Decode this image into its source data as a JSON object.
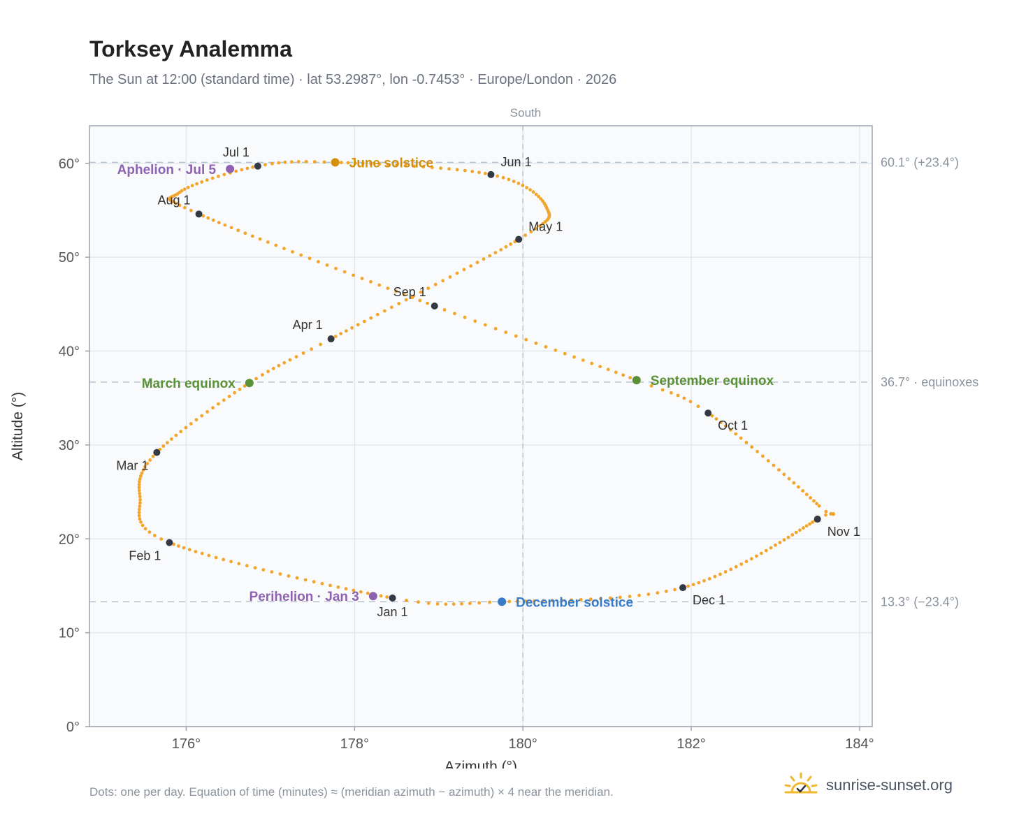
{
  "header": {
    "title": "Torksey Analemma",
    "subtitle": "The Sun at 12:00 (standard time) · lat 53.2987°, lon -0.7453° · Europe/London · 2026"
  },
  "footer": {
    "note": "Dots: one per day. Equation of time (minutes) ≈ (meridian azimuth − azimuth) × 4 near the meridian.",
    "brand": "sunrise-sunset.org",
    "brand_icon": "sun-check-icon"
  },
  "colors": {
    "path": "#f2a52a",
    "month": "#333a45",
    "solstice_june": "#d4900a",
    "solstice_december": "#3a7bc8",
    "equinox": "#5a9137",
    "apsis": "#8e62b0",
    "plot_bg": "#f8fafc",
    "grid": "#e3e8ee",
    "ref_line": "#b8c2cc",
    "axis": "#9aa3ad"
  },
  "chart_data": {
    "type": "scatter",
    "title": "Torksey Analemma",
    "xlabel": "Azimuth (°)",
    "ylabel": "Altitude (°)",
    "xlim": [
      174.85,
      184.15
    ],
    "ylim": [
      0,
      64
    ],
    "xticks": [
      176,
      178,
      180,
      182,
      184
    ],
    "yticks": [
      0,
      10,
      20,
      30,
      40,
      50,
      60
    ],
    "tick_suffix": "°",
    "grid": true,
    "meridian": {
      "azimuth": 180,
      "label": "South"
    },
    "reference_lines": [
      {
        "altitude": 60.1,
        "label": "60.1° (+23.4°)"
      },
      {
        "altitude": 36.7,
        "label": "36.7° · equinoxes"
      },
      {
        "altitude": 13.3,
        "label": "13.3° (−23.4°)"
      }
    ],
    "curve_nodes": [
      {
        "day": 0,
        "az": 178.45,
        "alt": 13.7
      },
      {
        "day": 31,
        "az": 175.8,
        "alt": 19.6
      },
      {
        "day": 45,
        "az": 175.45,
        "alt": 24.5
      },
      {
        "day": 59,
        "az": 175.65,
        "alt": 29.2
      },
      {
        "day": 78,
        "az": 176.75,
        "alt": 36.6
      },
      {
        "day": 90,
        "az": 177.72,
        "alt": 41.3
      },
      {
        "day": 120,
        "az": 179.95,
        "alt": 51.9
      },
      {
        "day": 135,
        "az": 180.28,
        "alt": 55.3
      },
      {
        "day": 151,
        "az": 179.62,
        "alt": 58.8
      },
      {
        "day": 171,
        "az": 177.77,
        "alt": 60.1
      },
      {
        "day": 181,
        "az": 176.85,
        "alt": 59.7
      },
      {
        "day": 197,
        "az": 175.92,
        "alt": 56.9
      },
      {
        "day": 212,
        "az": 176.15,
        "alt": 54.6
      },
      {
        "day": 243,
        "az": 178.95,
        "alt": 44.8
      },
      {
        "day": 265,
        "az": 181.35,
        "alt": 36.9
      },
      {
        "day": 273,
        "az": 182.2,
        "alt": 33.4
      },
      {
        "day": 297,
        "az": 183.52,
        "alt": 23.5
      },
      {
        "day": 304,
        "az": 183.5,
        "alt": 22.1
      },
      {
        "day": 334,
        "az": 181.9,
        "alt": 14.8
      },
      {
        "day": 354,
        "az": 179.75,
        "alt": 13.3
      },
      {
        "day": 365,
        "az": 178.45,
        "alt": 13.7
      }
    ],
    "months": [
      {
        "label": "Jan 1",
        "az": 178.45,
        "alt": 13.7,
        "anchor": "middle",
        "pos": "below"
      },
      {
        "label": "Feb 1",
        "az": 175.8,
        "alt": 19.6,
        "anchor": "end",
        "pos": "below-left"
      },
      {
        "label": "Mar 1",
        "az": 175.65,
        "alt": 29.2,
        "anchor": "end",
        "pos": "below-left"
      },
      {
        "label": "Apr 1",
        "az": 177.72,
        "alt": 41.3,
        "anchor": "end",
        "pos": "above-left"
      },
      {
        "label": "May 1",
        "az": 179.95,
        "alt": 51.9,
        "anchor": "start",
        "pos": "above-right"
      },
      {
        "label": "Jun 1",
        "az": 179.62,
        "alt": 58.8,
        "anchor": "start",
        "pos": "above-right"
      },
      {
        "label": "Jul 1",
        "az": 176.85,
        "alt": 59.7,
        "anchor": "end",
        "pos": "above-left"
      },
      {
        "label": "Aug 1",
        "az": 176.15,
        "alt": 54.6,
        "anchor": "end",
        "pos": "above-left"
      },
      {
        "label": "Sep 1",
        "az": 178.95,
        "alt": 44.8,
        "anchor": "end",
        "pos": "above-left"
      },
      {
        "label": "Oct 1",
        "az": 182.2,
        "alt": 33.4,
        "anchor": "start",
        "pos": "below-right"
      },
      {
        "label": "Nov 1",
        "az": 183.5,
        "alt": 22.1,
        "anchor": "start",
        "pos": "below-right"
      },
      {
        "label": "Dec 1",
        "az": 181.9,
        "alt": 14.8,
        "anchor": "start",
        "pos": "below-right"
      }
    ],
    "events": [
      {
        "label": "June solstice",
        "az": 177.77,
        "alt": 60.1,
        "color": "#d4900a",
        "side": "right"
      },
      {
        "label": "December solstice",
        "az": 179.75,
        "alt": 13.3,
        "color": "#3a7bc8",
        "side": "right"
      },
      {
        "label": "March equinox",
        "az": 176.75,
        "alt": 36.6,
        "color": "#5a9137",
        "side": "left"
      },
      {
        "label": "September equinox",
        "az": 181.35,
        "alt": 36.9,
        "color": "#5a9137",
        "side": "right"
      },
      {
        "label": "Aphelion · Jul 5",
        "az": 176.52,
        "alt": 59.4,
        "color": "#8e62b0",
        "side": "left"
      },
      {
        "label": "Perihelion · Jan 3",
        "az": 178.22,
        "alt": 13.9,
        "color": "#8e62b0",
        "side": "left"
      }
    ]
  }
}
